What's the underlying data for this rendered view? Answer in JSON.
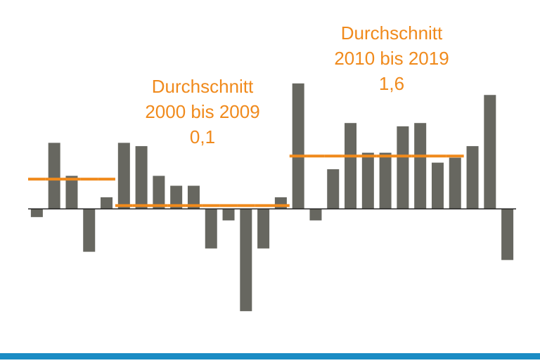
{
  "chart_data": {
    "type": "bar",
    "categories": [
      null,
      null,
      null,
      null,
      null,
      null,
      null,
      null,
      null,
      null,
      null,
      null,
      null,
      null,
      null,
      null,
      null,
      null,
      null,
      null,
      null,
      null,
      null,
      null,
      null,
      null,
      null,
      null
    ],
    "values": [
      -0.25,
      2.0,
      1.0,
      -1.3,
      0.35,
      2.0,
      1.9,
      1.0,
      0.7,
      0.7,
      -1.2,
      -0.35,
      -3.1,
      -1.2,
      0.35,
      3.8,
      -0.35,
      1.2,
      2.6,
      1.7,
      1.7,
      2.5,
      2.6,
      1.4,
      1.55,
      1.9,
      3.45,
      -1.55
    ],
    "color": "#676760",
    "average_line": {
      "color": "#f08a1c",
      "values": [
        0.9,
        0.9,
        0.9,
        0.9,
        0.9,
        0.1,
        0.1,
        0.1,
        0.1,
        0.1,
        0.1,
        0.1,
        0.1,
        0.1,
        0.1,
        1.6,
        1.6,
        1.6,
        1.6,
        1.6,
        1.6,
        1.6,
        1.6,
        1.6,
        1.6,
        null,
        null,
        null
      ]
    },
    "annotations": [
      {
        "lines": [
          "Durchschnitt",
          "2000 bis 2009",
          "0,1"
        ]
      },
      {
        "lines": [
          "Durchschnitt",
          "2010 bis 2019",
          "1,6"
        ]
      }
    ],
    "ylim": [
      -3.5,
      4.2
    ]
  }
}
